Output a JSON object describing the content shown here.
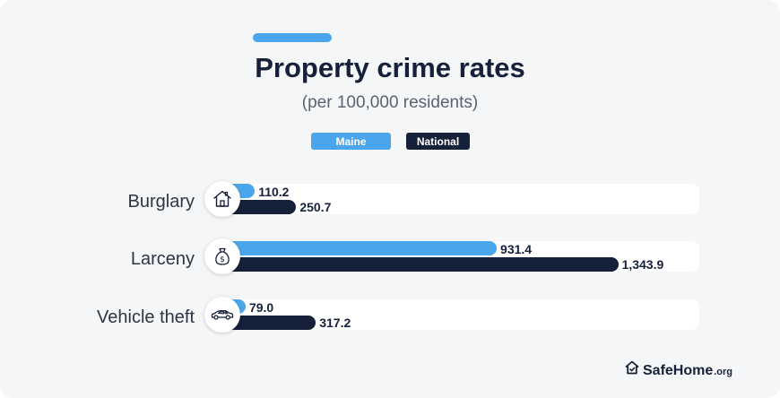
{
  "chart_data": {
    "type": "bar",
    "orientation": "horizontal",
    "title": "Property crime rates",
    "subtitle": "(per 100,000 residents)",
    "categories": [
      "Burglary",
      "Larceny",
      "Vehicle theft"
    ],
    "series": [
      {
        "name": "Maine",
        "values": [
          110.2,
          931.4,
          79.0
        ],
        "labels": [
          "110.2",
          "931.4",
          "79.0"
        ],
        "color": "#4aa6ec"
      },
      {
        "name": "National",
        "values": [
          250.7,
          1343.9,
          317.2
        ],
        "labels": [
          "250.7",
          "1,343.9",
          "317.2"
        ],
        "color": "#15213a"
      }
    ],
    "xlim": [
      0,
      1400
    ],
    "icons": [
      "house-icon",
      "money-bag-icon",
      "car-icon"
    ],
    "legend_position": "top-center",
    "grid": false
  },
  "brand": {
    "name": "SafeHome",
    "suffix": ".org"
  },
  "colors": {
    "maine": "#4aa6ec",
    "national": "#15213a",
    "background": "#f5f6f8"
  }
}
